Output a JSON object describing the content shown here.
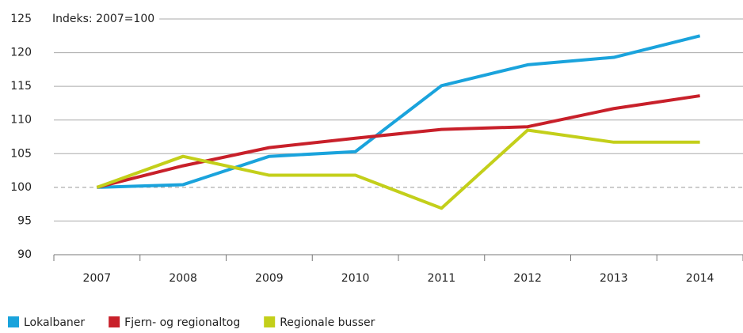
{
  "chart_data": {
    "type": "line",
    "annotation": "Indeks: 2007=100",
    "categories": [
      "2007",
      "2008",
      "2009",
      "2010",
      "2011",
      "2012",
      "2013",
      "2014"
    ],
    "series": [
      {
        "name": "Lokalbaner",
        "color": "#1aa3dc",
        "values": [
          100,
          100.4,
          104.6,
          105.3,
          115.1,
          118.2,
          119.3,
          122.5
        ]
      },
      {
        "name": "Fjern- og regionaltog",
        "color": "#c8202a",
        "values": [
          100,
          103.2,
          105.9,
          107.3,
          108.6,
          109.0,
          111.7,
          113.6
        ]
      },
      {
        "name": "Regionale busser",
        "color": "#c3cf1a",
        "values": [
          100,
          104.6,
          101.8,
          101.8,
          96.9,
          108.5,
          106.7,
          106.7
        ]
      }
    ],
    "ylim": [
      90,
      125
    ],
    "yticks": [
      90,
      95,
      100,
      105,
      110,
      115,
      120,
      125
    ],
    "grid": true,
    "baseline": 100,
    "legend": "bottom-left"
  }
}
